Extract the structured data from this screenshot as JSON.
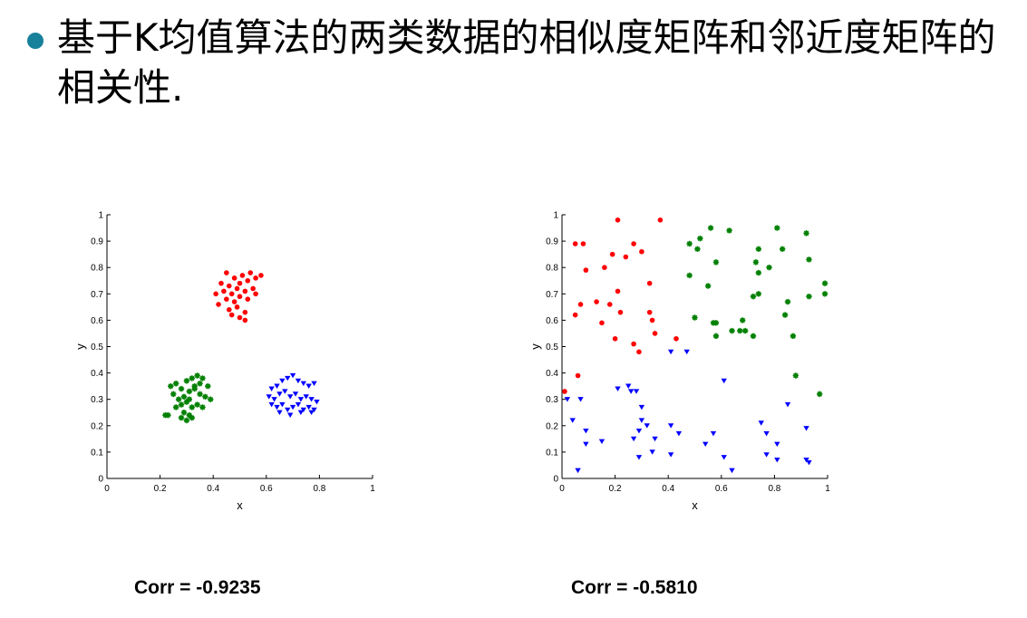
{
  "slide": {
    "bullet_text": "基于K均值算法的两类数据的相似度矩阵和邻近度矩阵的相关性.",
    "bullet_color": "#17809b"
  },
  "chart_data": [
    {
      "type": "scatter",
      "xlabel": "x",
      "ylabel": "y",
      "xlim": [
        0,
        1
      ],
      "ylim": [
        0,
        1
      ],
      "x_ticks": [
        "0",
        "0.2",
        "0.4",
        "0.6",
        "0.8",
        "1"
      ],
      "y_ticks": [
        "0",
        "0.1",
        "0.2",
        "0.3",
        "0.4",
        "0.5",
        "0.6",
        "0.7",
        "0.8",
        "0.9",
        "1"
      ],
      "grid": false,
      "caption": "Corr = -0.9235",
      "series": [
        {
          "color": "#ff0000",
          "marker": "circle",
          "points": [
            [
              0.45,
              0.78
            ],
            [
              0.48,
              0.76
            ],
            [
              0.51,
              0.77
            ],
            [
              0.54,
              0.78
            ],
            [
              0.56,
              0.76
            ],
            [
              0.58,
              0.77
            ],
            [
              0.43,
              0.74
            ],
            [
              0.46,
              0.73
            ],
            [
              0.5,
              0.74
            ],
            [
              0.53,
              0.75
            ],
            [
              0.55,
              0.72
            ],
            [
              0.41,
              0.7
            ],
            [
              0.44,
              0.71
            ],
            [
              0.47,
              0.7
            ],
            [
              0.49,
              0.72
            ],
            [
              0.52,
              0.71
            ],
            [
              0.56,
              0.7
            ],
            [
              0.42,
              0.66
            ],
            [
              0.45,
              0.68
            ],
            [
              0.48,
              0.67
            ],
            [
              0.5,
              0.69
            ],
            [
              0.53,
              0.68
            ],
            [
              0.46,
              0.64
            ],
            [
              0.49,
              0.65
            ],
            [
              0.52,
              0.63
            ],
            [
              0.47,
              0.62
            ],
            [
              0.5,
              0.61
            ],
            [
              0.52,
              0.6
            ]
          ]
        },
        {
          "color": "#008000",
          "marker": "star",
          "points": [
            [
              0.23,
              0.24
            ],
            [
              0.25,
              0.32
            ],
            [
              0.24,
              0.35
            ],
            [
              0.26,
              0.36
            ],
            [
              0.28,
              0.34
            ],
            [
              0.3,
              0.37
            ],
            [
              0.32,
              0.38
            ],
            [
              0.34,
              0.39
            ],
            [
              0.36,
              0.38
            ],
            [
              0.38,
              0.35
            ],
            [
              0.27,
              0.3
            ],
            [
              0.29,
              0.31
            ],
            [
              0.31,
              0.33
            ],
            [
              0.33,
              0.34
            ],
            [
              0.35,
              0.32
            ],
            [
              0.37,
              0.31
            ],
            [
              0.39,
              0.3
            ],
            [
              0.26,
              0.27
            ],
            [
              0.28,
              0.28
            ],
            [
              0.3,
              0.29
            ],
            [
              0.32,
              0.27
            ],
            [
              0.34,
              0.28
            ],
            [
              0.29,
              0.25
            ],
            [
              0.31,
              0.24
            ],
            [
              0.3,
              0.22
            ],
            [
              0.32,
              0.23
            ],
            [
              0.28,
              0.23
            ],
            [
              0.22,
              0.24
            ],
            [
              0.36,
              0.27
            ],
            [
              0.33,
              0.35
            ],
            [
              0.35,
              0.36
            ],
            [
              0.31,
              0.3
            ]
          ]
        },
        {
          "color": "#0000ff",
          "marker": "triangle-down",
          "points": [
            [
              0.62,
              0.34
            ],
            [
              0.64,
              0.35
            ],
            [
              0.66,
              0.37
            ],
            [
              0.68,
              0.38
            ],
            [
              0.7,
              0.39
            ],
            [
              0.72,
              0.37
            ],
            [
              0.74,
              0.36
            ],
            [
              0.76,
              0.35
            ],
            [
              0.78,
              0.36
            ],
            [
              0.61,
              0.31
            ],
            [
              0.63,
              0.3
            ],
            [
              0.65,
              0.32
            ],
            [
              0.67,
              0.33
            ],
            [
              0.69,
              0.31
            ],
            [
              0.71,
              0.32
            ],
            [
              0.73,
              0.3
            ],
            [
              0.75,
              0.31
            ],
            [
              0.77,
              0.3
            ],
            [
              0.79,
              0.29
            ],
            [
              0.62,
              0.28
            ],
            [
              0.64,
              0.27
            ],
            [
              0.66,
              0.28
            ],
            [
              0.68,
              0.26
            ],
            [
              0.7,
              0.27
            ],
            [
              0.72,
              0.28
            ],
            [
              0.74,
              0.26
            ],
            [
              0.76,
              0.27
            ],
            [
              0.78,
              0.26
            ],
            [
              0.65,
              0.25
            ],
            [
              0.69,
              0.24
            ],
            [
              0.73,
              0.25
            ],
            [
              0.77,
              0.25
            ]
          ]
        }
      ]
    },
    {
      "type": "scatter",
      "xlabel": "x",
      "ylabel": "y",
      "xlim": [
        0,
        1
      ],
      "ylim": [
        0,
        1
      ],
      "x_ticks": [
        "0",
        "0.2",
        "0.4",
        "0.6",
        "0.8",
        "1"
      ],
      "y_ticks": [
        "0",
        "0.1",
        "0.2",
        "0.3",
        "0.4",
        "0.5",
        "0.6",
        "0.7",
        "0.8",
        "0.9",
        "1"
      ],
      "grid": false,
      "caption": "Corr = -0.5810",
      "series": [
        {
          "color": "#ff0000",
          "marker": "circle",
          "points": [
            [
              0.21,
              0.98
            ],
            [
              0.37,
              0.98
            ],
            [
              0.05,
              0.89
            ],
            [
              0.08,
              0.89
            ],
            [
              0.27,
              0.89
            ],
            [
              0.3,
              0.86
            ],
            [
              0.19,
              0.85
            ],
            [
              0.24,
              0.84
            ],
            [
              0.16,
              0.8
            ],
            [
              0.09,
              0.79
            ],
            [
              0.33,
              0.74
            ],
            [
              0.21,
              0.71
            ],
            [
              0.07,
              0.66
            ],
            [
              0.13,
              0.67
            ],
            [
              0.18,
              0.66
            ],
            [
              0.22,
              0.63
            ],
            [
              0.33,
              0.63
            ],
            [
              0.05,
              0.62
            ],
            [
              0.15,
              0.59
            ],
            [
              0.34,
              0.6
            ],
            [
              0.35,
              0.55
            ],
            [
              0.2,
              0.53
            ],
            [
              0.43,
              0.53
            ],
            [
              0.27,
              0.51
            ],
            [
              0.29,
              0.48
            ],
            [
              0.06,
              0.39
            ],
            [
              0.01,
              0.33
            ]
          ]
        },
        {
          "color": "#008000",
          "marker": "star",
          "points": [
            [
              0.56,
              0.95
            ],
            [
              0.63,
              0.94
            ],
            [
              0.81,
              0.95
            ],
            [
              0.92,
              0.93
            ],
            [
              0.52,
              0.91
            ],
            [
              0.48,
              0.89
            ],
            [
              0.51,
              0.87
            ],
            [
              0.74,
              0.87
            ],
            [
              0.83,
              0.87
            ],
            [
              0.58,
              0.82
            ],
            [
              0.73,
              0.82
            ],
            [
              0.78,
              0.8
            ],
            [
              0.93,
              0.83
            ],
            [
              0.74,
              0.78
            ],
            [
              0.48,
              0.77
            ],
            [
              0.55,
              0.73
            ],
            [
              0.99,
              0.74
            ],
            [
              0.74,
              0.7
            ],
            [
              0.72,
              0.69
            ],
            [
              0.85,
              0.67
            ],
            [
              0.93,
              0.69
            ],
            [
              0.99,
              0.7
            ],
            [
              0.84,
              0.62
            ],
            [
              0.5,
              0.61
            ],
            [
              0.58,
              0.59
            ],
            [
              0.57,
              0.59
            ],
            [
              0.68,
              0.6
            ],
            [
              0.67,
              0.56
            ],
            [
              0.64,
              0.56
            ],
            [
              0.69,
              0.56
            ],
            [
              0.72,
              0.54
            ],
            [
              0.58,
              0.54
            ],
            [
              0.87,
              0.54
            ],
            [
              0.88,
              0.39
            ],
            [
              0.97,
              0.32
            ]
          ]
        },
        {
          "color": "#0000ff",
          "marker": "triangle-down",
          "points": [
            [
              0.41,
              0.48
            ],
            [
              0.47,
              0.48
            ],
            [
              0.61,
              0.37
            ],
            [
              0.21,
              0.34
            ],
            [
              0.25,
              0.35
            ],
            [
              0.26,
              0.33
            ],
            [
              0.28,
              0.33
            ],
            [
              0.02,
              0.3
            ],
            [
              0.07,
              0.3
            ],
            [
              0.3,
              0.27
            ],
            [
              0.85,
              0.28
            ],
            [
              0.04,
              0.22
            ],
            [
              0.3,
              0.22
            ],
            [
              0.32,
              0.2
            ],
            [
              0.41,
              0.2
            ],
            [
              0.75,
              0.21
            ],
            [
              0.92,
              0.19
            ],
            [
              0.09,
              0.18
            ],
            [
              0.29,
              0.18
            ],
            [
              0.44,
              0.17
            ],
            [
              0.57,
              0.17
            ],
            [
              0.77,
              0.17
            ],
            [
              0.27,
              0.15
            ],
            [
              0.35,
              0.15
            ],
            [
              0.09,
              0.13
            ],
            [
              0.15,
              0.14
            ],
            [
              0.54,
              0.13
            ],
            [
              0.81,
              0.13
            ],
            [
              0.34,
              0.1
            ],
            [
              0.41,
              0.09
            ],
            [
              0.77,
              0.09
            ],
            [
              0.29,
              0.08
            ],
            [
              0.61,
              0.08
            ],
            [
              0.81,
              0.07
            ],
            [
              0.92,
              0.07
            ],
            [
              0.93,
              0.06
            ],
            [
              0.06,
              0.03
            ],
            [
              0.64,
              0.03
            ]
          ]
        }
      ]
    }
  ]
}
